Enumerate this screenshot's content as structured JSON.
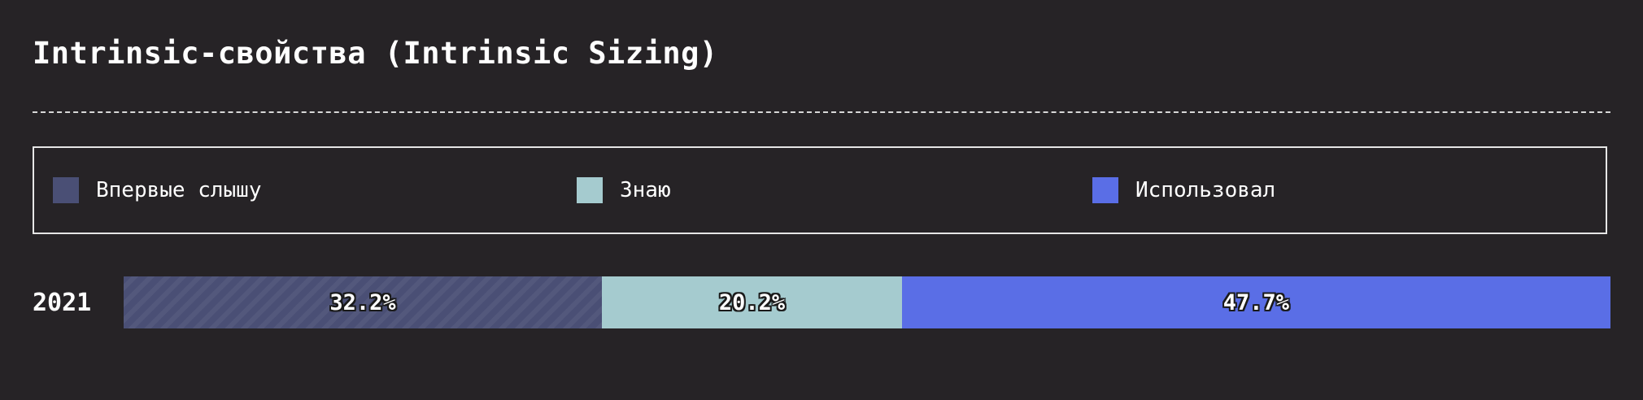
{
  "title": "Intrinsic-свойства (Intrinsic Sizing)",
  "legend": [
    {
      "label": "Впервые слышу",
      "color": "#4a4f75"
    },
    {
      "label": "Знаю",
      "color": "#a5cbcf"
    },
    {
      "label": "Использовал",
      "color": "#5a6ee6"
    }
  ],
  "chart_data": {
    "type": "bar",
    "stacked": true,
    "orientation": "horizontal",
    "normalized": true,
    "title": "Intrinsic-свойства (Intrinsic Sizing)",
    "categories": [
      "2021"
    ],
    "series": [
      {
        "name": "Впервые слышу",
        "values": [
          32.2
        ],
        "label": "32.2%",
        "color": "#4a4f75"
      },
      {
        "name": "Знаю",
        "values": [
          20.2
        ],
        "label": "20.2%",
        "color": "#a5cbcf"
      },
      {
        "name": "Использовал",
        "values": [
          47.7
        ],
        "label": "47.7%",
        "color": "#5a6ee6"
      }
    ],
    "unit": "%",
    "legend_position": "top",
    "grid": false
  }
}
